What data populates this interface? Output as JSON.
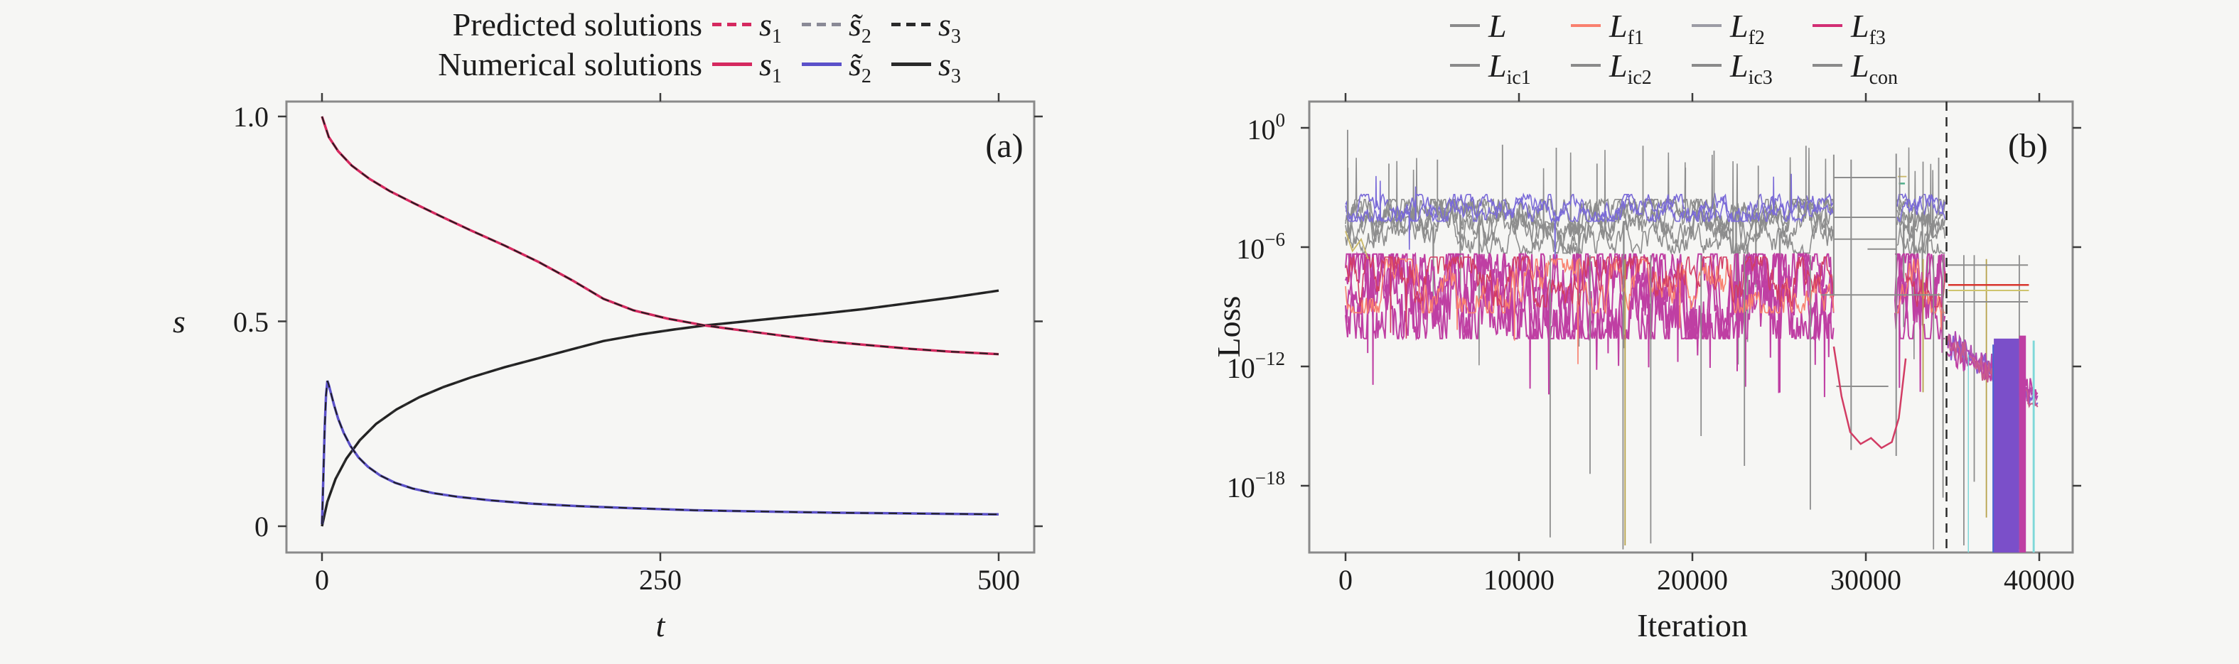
{
  "figure": {
    "background": "#f6f6f4",
    "panel_a_label": "(a)",
    "panel_b_label": "(b)"
  },
  "legend_a": {
    "rows": [
      {
        "title": "Predicted solutions",
        "style": "dashed",
        "items": [
          {
            "main": "s",
            "sub": "1",
            "color": "#d5295f"
          },
          {
            "main": "s̃",
            "sub": "2",
            "color": "#8a8a96"
          },
          {
            "main": "s",
            "sub": "3",
            "color": "#2b2b2b"
          }
        ]
      },
      {
        "title": "Numerical solutions",
        "style": "solid",
        "items": [
          {
            "main": "s",
            "sub": "1",
            "color": "#d5295f"
          },
          {
            "main": "s̃",
            "sub": "2",
            "color": "#5b51c9"
          },
          {
            "main": "s",
            "sub": "3",
            "color": "#2b2b2b"
          }
        ]
      }
    ]
  },
  "legend_b": {
    "rows": [
      {
        "items": [
          {
            "main": "L",
            "sub": "",
            "color": "#8a8a8a"
          },
          {
            "main": "L",
            "sub": "f1",
            "color": "#f9806e"
          },
          {
            "main": "L",
            "sub": "f2",
            "color": "#9c9ca4"
          },
          {
            "main": "L",
            "sub": "f3",
            "color": "#d22e74"
          }
        ]
      },
      {
        "items": [
          {
            "main": "L",
            "sub": "ic1",
            "color": "#8a8a8a"
          },
          {
            "main": "L",
            "sub": "ic2",
            "color": "#8a8a8a"
          },
          {
            "main": "L",
            "sub": "ic3",
            "color": "#8a8a8a"
          },
          {
            "main": "L",
            "sub": "con",
            "color": "#8a8a8a"
          }
        ]
      }
    ]
  },
  "chart_data": [
    {
      "type": "line",
      "panel": "a",
      "xlabel": "t",
      "ylabel": "s",
      "xlim": [
        0,
        500
      ],
      "ylim": [
        0,
        1.05
      ],
      "grid": false,
      "xticks": [
        {
          "v": 0,
          "label": "0"
        },
        {
          "v": 250,
          "label": "250"
        },
        {
          "v": 500,
          "label": "500"
        }
      ],
      "yticks": [
        {
          "v": 1.0,
          "label": "1.0"
        },
        {
          "v": 0.5,
          "label": "0.5"
        },
        {
          "v": 0.0,
          "label": "0"
        }
      ],
      "series": [
        {
          "name": "s3",
          "color": "#2b2b2b",
          "width": 3.5,
          "dashed_overlay": true,
          "points": [
            [
              0,
              0.0
            ],
            [
              4,
              0.06
            ],
            [
              10,
              0.115
            ],
            [
              18,
              0.165
            ],
            [
              28,
              0.21
            ],
            [
              40,
              0.25
            ],
            [
              55,
              0.285
            ],
            [
              72,
              0.315
            ],
            [
              90,
              0.34
            ],
            [
              110,
              0.363
            ],
            [
              135,
              0.388
            ],
            [
              160,
              0.41
            ],
            [
              185,
              0.432
            ],
            [
              208,
              0.452
            ],
            [
              235,
              0.468
            ],
            [
              260,
              0.48
            ],
            [
              283,
              0.49
            ],
            [
              310,
              0.499
            ],
            [
              340,
              0.509
            ],
            [
              370,
              0.519
            ],
            [
              400,
              0.53
            ],
            [
              435,
              0.545
            ],
            [
              465,
              0.558
            ],
            [
              500,
              0.575
            ]
          ]
        },
        {
          "name": "s2",
          "color": "#5b51c9",
          "width": 3.5,
          "dashed_overlay": true,
          "points": [
            [
              0,
              0.005
            ],
            [
              1,
              0.12
            ],
            [
              2,
              0.24
            ],
            [
              3,
              0.32
            ],
            [
              4,
              0.355
            ],
            [
              5,
              0.345
            ],
            [
              7,
              0.32
            ],
            [
              9,
              0.295
            ],
            [
              12,
              0.262
            ],
            [
              16,
              0.228
            ],
            [
              21,
              0.196
            ],
            [
              27,
              0.168
            ],
            [
              34,
              0.145
            ],
            [
              43,
              0.124
            ],
            [
              54,
              0.106
            ],
            [
              67,
              0.092
            ],
            [
              82,
              0.081
            ],
            [
              100,
              0.072
            ],
            [
              125,
              0.063
            ],
            [
              155,
              0.055
            ],
            [
              190,
              0.049
            ],
            [
              230,
              0.044
            ],
            [
              275,
              0.039
            ],
            [
              325,
              0.036
            ],
            [
              380,
              0.033
            ],
            [
              440,
              0.031
            ],
            [
              500,
              0.029
            ]
          ]
        },
        {
          "name": "s1",
          "color": "#d5295f",
          "width": 3.5,
          "dashed_overlay": true,
          "points": [
            [
              0,
              1.0
            ],
            [
              5,
              0.95
            ],
            [
              12,
              0.915
            ],
            [
              22,
              0.88
            ],
            [
              35,
              0.848
            ],
            [
              50,
              0.818
            ],
            [
              68,
              0.788
            ],
            [
              88,
              0.756
            ],
            [
              110,
              0.722
            ],
            [
              135,
              0.685
            ],
            [
              160,
              0.645
            ],
            [
              185,
              0.6
            ],
            [
              208,
              0.555
            ],
            [
              230,
              0.527
            ],
            [
              255,
              0.507
            ],
            [
              283,
              0.49
            ],
            [
              310,
              0.478
            ],
            [
              340,
              0.465
            ],
            [
              370,
              0.452
            ],
            [
              400,
              0.443
            ],
            [
              435,
              0.433
            ],
            [
              465,
              0.426
            ],
            [
              500,
              0.42
            ]
          ]
        }
      ]
    },
    {
      "type": "line-log",
      "panel": "b",
      "xlabel": "Iteration",
      "ylabel": "Loss",
      "xlim": [
        0,
        40000
      ],
      "ylog_top_exp": 0,
      "ylog_bottom_exp": -21,
      "xticks": [
        {
          "v": 0,
          "label": "0"
        },
        {
          "v": 10000,
          "label": "10000"
        },
        {
          "v": 20000,
          "label": "20000"
        },
        {
          "v": 30000,
          "label": "30000"
        },
        {
          "v": 40000,
          "label": "40000"
        }
      ],
      "yticks": [
        {
          "base": "10",
          "exp": "0"
        },
        {
          "base": "10",
          "exp": "−6"
        },
        {
          "base": "10",
          "exp": "−12"
        },
        {
          "base": "10",
          "exp": "−18"
        }
      ],
      "seed": 1337,
      "bands": [
        {
          "name": "gray-band",
          "color": "#8d8d8d",
          "n": 5,
          "lo": 3.6,
          "hi": 6.3,
          "step": 0.55,
          "w": 1.6,
          "i0": 0,
          "i1": 34600,
          "skip": [
            28150,
            31750
          ],
          "pUp": 0.01,
          "upLo": 0.9,
          "upHi": 2.6,
          "pDn": 0.004,
          "dnLo": 8,
          "dnHi": 12
        },
        {
          "name": "purple-top",
          "color": "#7a6ad8",
          "n": 2,
          "lo": 3.35,
          "hi": 4.7,
          "step": 0.4,
          "w": 1.6,
          "i0": 0,
          "i1": 34600,
          "skip": [
            28150,
            31750
          ],
          "pUp": 0.006,
          "upLo": 2.3,
          "upHi": 3.0,
          "pDn": 0.003,
          "dnLo": 6,
          "dnHi": 9
        },
        {
          "name": "magenta-band",
          "color": "#bf3fa3",
          "n": 4,
          "lo": 6.35,
          "hi": 10.6,
          "step": 1.5,
          "w": 2,
          "i0": 0,
          "i1": 34600,
          "skip": [
            28150,
            31650
          ],
          "pUp": 0,
          "pDn": 0.012,
          "dnLo": 11,
          "dnHi": 13.6
        },
        {
          "name": "salmon-line",
          "color": "#f9806e",
          "n": 1,
          "lo": 6.6,
          "hi": 9.3,
          "step": 0.8,
          "w": 1.6,
          "i0": 0,
          "i1": 34600,
          "skip": [
            28150,
            31650
          ],
          "pUp": 0,
          "pDn": 0.006,
          "dnLo": 10,
          "dnHi": 12
        },
        {
          "name": "crimson-line",
          "color": "#d23c64",
          "n": 1,
          "lo": 6.5,
          "hi": 9.0,
          "step": 0.8,
          "w": 1.6,
          "i0": 0,
          "i1": 28150,
          "pUp": 0,
          "pDn": 0.006,
          "dnLo": 10,
          "dnHi": 12
        },
        {
          "name": "crimson-line-2",
          "color": "#d23c64",
          "n": 1,
          "lo": 6.5,
          "hi": 9.0,
          "step": 0.8,
          "w": 1.6,
          "i0": 32300,
          "i1": 34600,
          "pUp": 0,
          "pDn": 0
        }
      ],
      "dip": {
        "color": "#d23c64",
        "w": 2.5,
        "points": [
          [
            28150,
            11.0
          ],
          [
            28600,
            13.5
          ],
          [
            29100,
            15.3
          ],
          [
            29700,
            15.9
          ],
          [
            30300,
            15.6
          ],
          [
            30900,
            16.1
          ],
          [
            31500,
            15.8
          ],
          [
            31900,
            14.6
          ],
          [
            32300,
            11.6
          ]
        ]
      },
      "ladder": {
        "color": "#8d8d8d",
        "w": 2,
        "segs": [
          [
            [
              28150,
              1.35
            ],
            [
              28150,
              8.4
            ]
          ],
          [
            [
              29150,
              1.6
            ],
            [
              29150,
              16.2
            ]
          ],
          [
            [
              31750,
              1.3
            ],
            [
              31750,
              16.5
            ]
          ],
          [
            [
              28150,
              2.5
            ],
            [
              31750,
              2.5
            ]
          ],
          [
            [
              28150,
              4.5
            ],
            [
              31750,
              4.5
            ]
          ],
          [
            [
              28150,
              5.6
            ],
            [
              31750,
              5.6
            ]
          ],
          [
            [
              27400,
              8.4
            ],
            [
              34400,
              8.4
            ]
          ],
          [
            [
              28300,
              13.0
            ],
            [
              31300,
              13.0
            ]
          ],
          [
            [
              30100,
              6.1
            ],
            [
              31750,
              6.1
            ]
          ]
        ]
      },
      "up_spikes": {
        "color": "#8d8d8d",
        "w": 1.8,
        "base": 4.4,
        "list": [
          [
            120,
            0.1
          ],
          [
            2500,
            1.8
          ],
          [
            5300,
            1.6
          ],
          [
            9050,
            0.85
          ],
          [
            12150,
            1.0
          ],
          [
            14500,
            1.8
          ],
          [
            17150,
            0.9
          ],
          [
            19600,
            2.0
          ],
          [
            21250,
            1.15
          ],
          [
            23800,
            1.9
          ],
          [
            26550,
            0.9
          ],
          [
            31950,
            2.0
          ],
          [
            33300,
            1.7
          ],
          [
            34200,
            1.5
          ]
        ]
      },
      "down_spikes": [
        {
          "color": "#8d8d8d",
          "w": 1.8,
          "base": 6.4,
          "list": [
            [
              11800,
              20.6
            ],
            [
              14100,
              17.4
            ],
            [
              16000,
              21.2
            ],
            [
              17600,
              20.9
            ],
            [
              20500,
              15.5
            ],
            [
              23000,
              17.0
            ],
            [
              26800,
              19.2
            ],
            [
              33900,
              21.2
            ],
            [
              34450,
              18.6
            ],
            [
              35650,
              21.0
            ],
            [
              36250,
              17.8
            ],
            [
              38850,
              21.2
            ]
          ]
        },
        {
          "color": "#b7a24a",
          "w": 1.8,
          "base": 6.6,
          "list": [
            [
              16120,
              21.0
            ],
            [
              33300,
              13.3
            ],
            [
              36950,
              19.6
            ]
          ]
        }
      ],
      "khaki": {
        "color": "#c9b765",
        "w": 1.8,
        "segs": [
          [
            [
              0,
              5.2
            ],
            [
              400,
              6.2
            ],
            [
              900,
              5.6
            ],
            [
              1300,
              6.6
            ]
          ],
          [
            [
              31850,
              2.45
            ],
            [
              32350,
              2.45
            ]
          ]
        ]
      },
      "teal": {
        "color": "#4fae8a",
        "w": 2.5,
        "segs": [
          [
            [
              31900,
              2.8
            ],
            [
              32250,
              2.8
            ]
          ]
        ]
      },
      "vline": {
        "x": 34650,
        "color": "#2b2b2b",
        "dash": "13 9",
        "w": 2.5
      },
      "flat_lines": [
        {
          "color": "#8d8d8d",
          "w": 2,
          "d": 6.9,
          "i0": 34650,
          "i1": 39350
        },
        {
          "color": "#d8362e",
          "w": 2.5,
          "d": 7.9,
          "i0": 34750,
          "i1": 39400
        },
        {
          "color": "#cfc46e",
          "w": 2,
          "d": 8.18,
          "i0": 34750,
          "i1": 39400
        },
        {
          "color": "#8d8d8d",
          "w": 2,
          "d": 8.75,
          "i0": 34650,
          "i1": 39350
        }
      ],
      "tangle": {
        "i0": 34680,
        "i1": 39900,
        "step": 0.25,
        "w": 2,
        "lines": [
          {
            "color": "#b048b0",
            "d0": 10.6,
            "d1": 13.6
          },
          {
            "color": "#8a5ad0",
            "d0": 10.9,
            "d1": 13.9
          },
          {
            "color": "#bf3fa3",
            "d0": 11.2,
            "d1": 13.4
          },
          {
            "color": "#c75b8d",
            "d0": 10.7,
            "d1": 14.1
          }
        ]
      },
      "blocks": [
        {
          "color": "#4a66d0",
          "i0": 37300,
          "i1": 37430,
          "dTop": 10.9
        },
        {
          "color": "#7b4fc9",
          "i0": 37380,
          "i1": 38840,
          "dTop": 10.6
        },
        {
          "color": "#bf3fa3",
          "i0": 38840,
          "i1": 39230,
          "dTop": 10.45
        },
        {
          "color": "#7fd8d8",
          "i0": 39620,
          "i1": 39740,
          "dTop": 10.7
        },
        {
          "color": "#7fd8d8",
          "i0": 35880,
          "i1": 35940,
          "dTop": 11.4
        }
      ]
    }
  ]
}
